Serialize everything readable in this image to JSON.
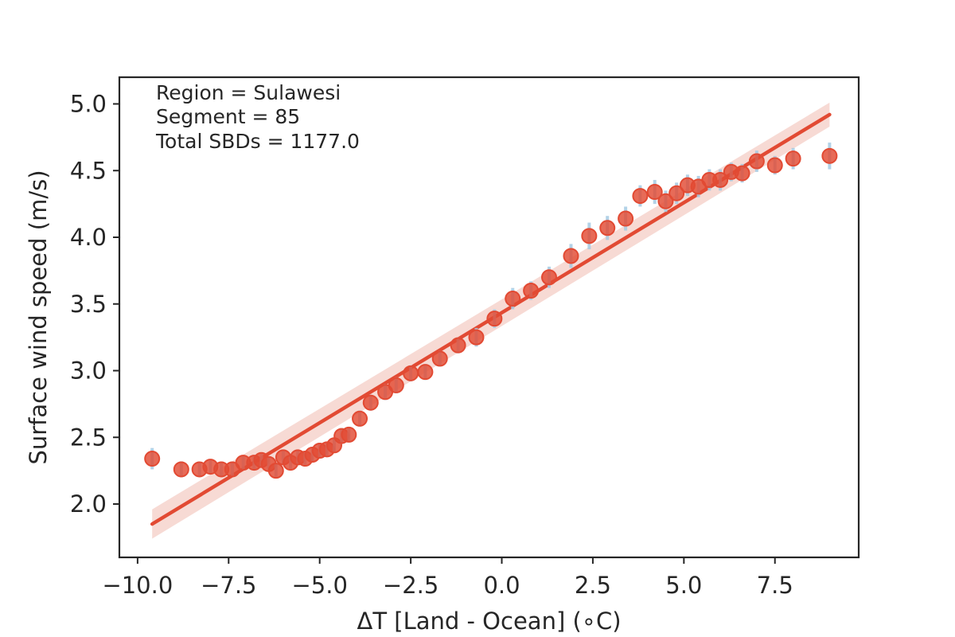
{
  "chart_data": {
    "type": "scatter",
    "title": "",
    "xlabel": "ΔT [Land - Ocean] (∘C)",
    "ylabel": "Surface wind speed (m/s)",
    "xlim": [
      -10.5,
      9.8
    ],
    "ylim": [
      1.6,
      5.2
    ],
    "xticks": [
      -10.0,
      -7.5,
      -5.0,
      -2.5,
      0.0,
      2.5,
      5.0,
      7.5
    ],
    "xtick_labels": [
      "−10.0",
      "−7.5",
      "−5.0",
      "−2.5",
      "0.0",
      "2.5",
      "5.0",
      "7.5"
    ],
    "yticks": [
      2.0,
      2.5,
      3.0,
      3.5,
      4.0,
      4.5,
      5.0
    ],
    "ytick_labels": [
      "2.0",
      "2.5",
      "3.0",
      "3.5",
      "4.0",
      "4.5",
      "5.0"
    ],
    "grid": false,
    "annotation": [
      "Region = Sulawesi",
      "Segment = 85",
      "Total SBDs = 1177.0"
    ],
    "colors": {
      "points": "#e24a33",
      "error_bars": "#a6cbe3",
      "fit_line": "#e24a33",
      "confidence_band": "#f6d3cc",
      "axes": "#262626"
    },
    "series": [
      {
        "type": "scatter",
        "x": [
          -9.6,
          -8.8,
          -8.3,
          -8.0,
          -7.7,
          -7.4,
          -7.1,
          -6.8,
          -6.6,
          -6.4,
          -6.2,
          -6.0,
          -5.8,
          -5.6,
          -5.4,
          -5.2,
          -5.0,
          -4.8,
          -4.6,
          -4.4,
          -4.2,
          -3.9,
          -3.6,
          -3.2,
          -2.9,
          -2.5,
          -2.1,
          -1.7,
          -1.2,
          -0.7,
          -0.2,
          0.3,
          0.8,
          1.3,
          1.9,
          2.4,
          2.9,
          3.4,
          3.8,
          4.2,
          4.5,
          4.8,
          5.1,
          5.4,
          5.7,
          6.0,
          6.3,
          6.6,
          7.0,
          7.5,
          8.0,
          9.0
        ],
        "y": [
          2.34,
          2.26,
          2.26,
          2.28,
          2.26,
          2.26,
          2.31,
          2.31,
          2.33,
          2.3,
          2.25,
          2.35,
          2.31,
          2.35,
          2.34,
          2.37,
          2.4,
          2.41,
          2.44,
          2.51,
          2.52,
          2.64,
          2.76,
          2.84,
          2.89,
          2.98,
          2.99,
          3.09,
          3.19,
          3.25,
          3.39,
          3.54,
          3.6,
          3.7,
          3.86,
          4.01,
          4.07,
          4.14,
          4.31,
          4.34,
          4.27,
          4.33,
          4.39,
          4.38,
          4.43,
          4.43,
          4.49,
          4.48,
          4.57,
          4.54,
          4.59,
          4.61
        ],
        "yerr": [
          0.08,
          0.06,
          0.05,
          0.05,
          0.05,
          0.05,
          0.05,
          0.05,
          0.05,
          0.05,
          0.05,
          0.05,
          0.05,
          0.05,
          0.05,
          0.05,
          0.05,
          0.05,
          0.05,
          0.06,
          0.05,
          0.06,
          0.06,
          0.06,
          0.06,
          0.06,
          0.06,
          0.06,
          0.06,
          0.07,
          0.07,
          0.08,
          0.07,
          0.08,
          0.09,
          0.1,
          0.09,
          0.09,
          0.08,
          0.09,
          0.08,
          0.08,
          0.08,
          0.08,
          0.08,
          0.08,
          0.07,
          0.07,
          0.08,
          0.07,
          0.08,
          0.1
        ]
      },
      {
        "type": "line",
        "x": [
          -9.6,
          9.0
        ],
        "y": [
          1.85,
          4.92
        ],
        "band_halfwidth": [
          0.11,
          0.09
        ]
      }
    ]
  }
}
